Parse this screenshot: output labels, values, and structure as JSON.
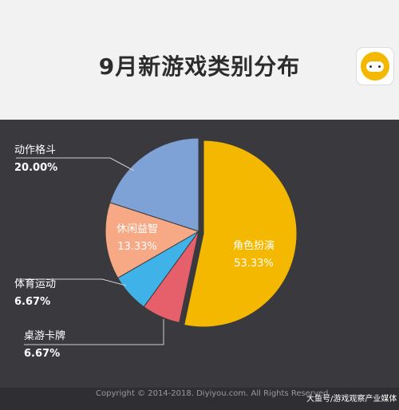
{
  "chart_data": {
    "type": "pie",
    "title": "9月新游戏类别分布",
    "slices": [
      {
        "label": "角色扮演",
        "value": 53.33,
        "value_label": "53.33%",
        "color": "#f5b800"
      },
      {
        "label": "桌游卡牌",
        "value": 6.67,
        "value_label": "6.67%",
        "color": "#e5606a"
      },
      {
        "label": "体育运动",
        "value": 6.67,
        "value_label": "6.67%",
        "color": "#3fb3e8"
      },
      {
        "label": "休闲益智",
        "value": 13.33,
        "value_label": "13.33%",
        "color": "#f7a986"
      },
      {
        "label": "动作格斗",
        "value": 20.0,
        "value_label": "20.00%",
        "color": "#7ea1d6"
      }
    ]
  },
  "logo_icon": "gamepad-icon",
  "footer": {
    "copyright": "Copyright © 2014-2018. Diyiyou.com. All Rights Reserved.",
    "watermark": "大鱼号/游戏观察产业媒体"
  }
}
